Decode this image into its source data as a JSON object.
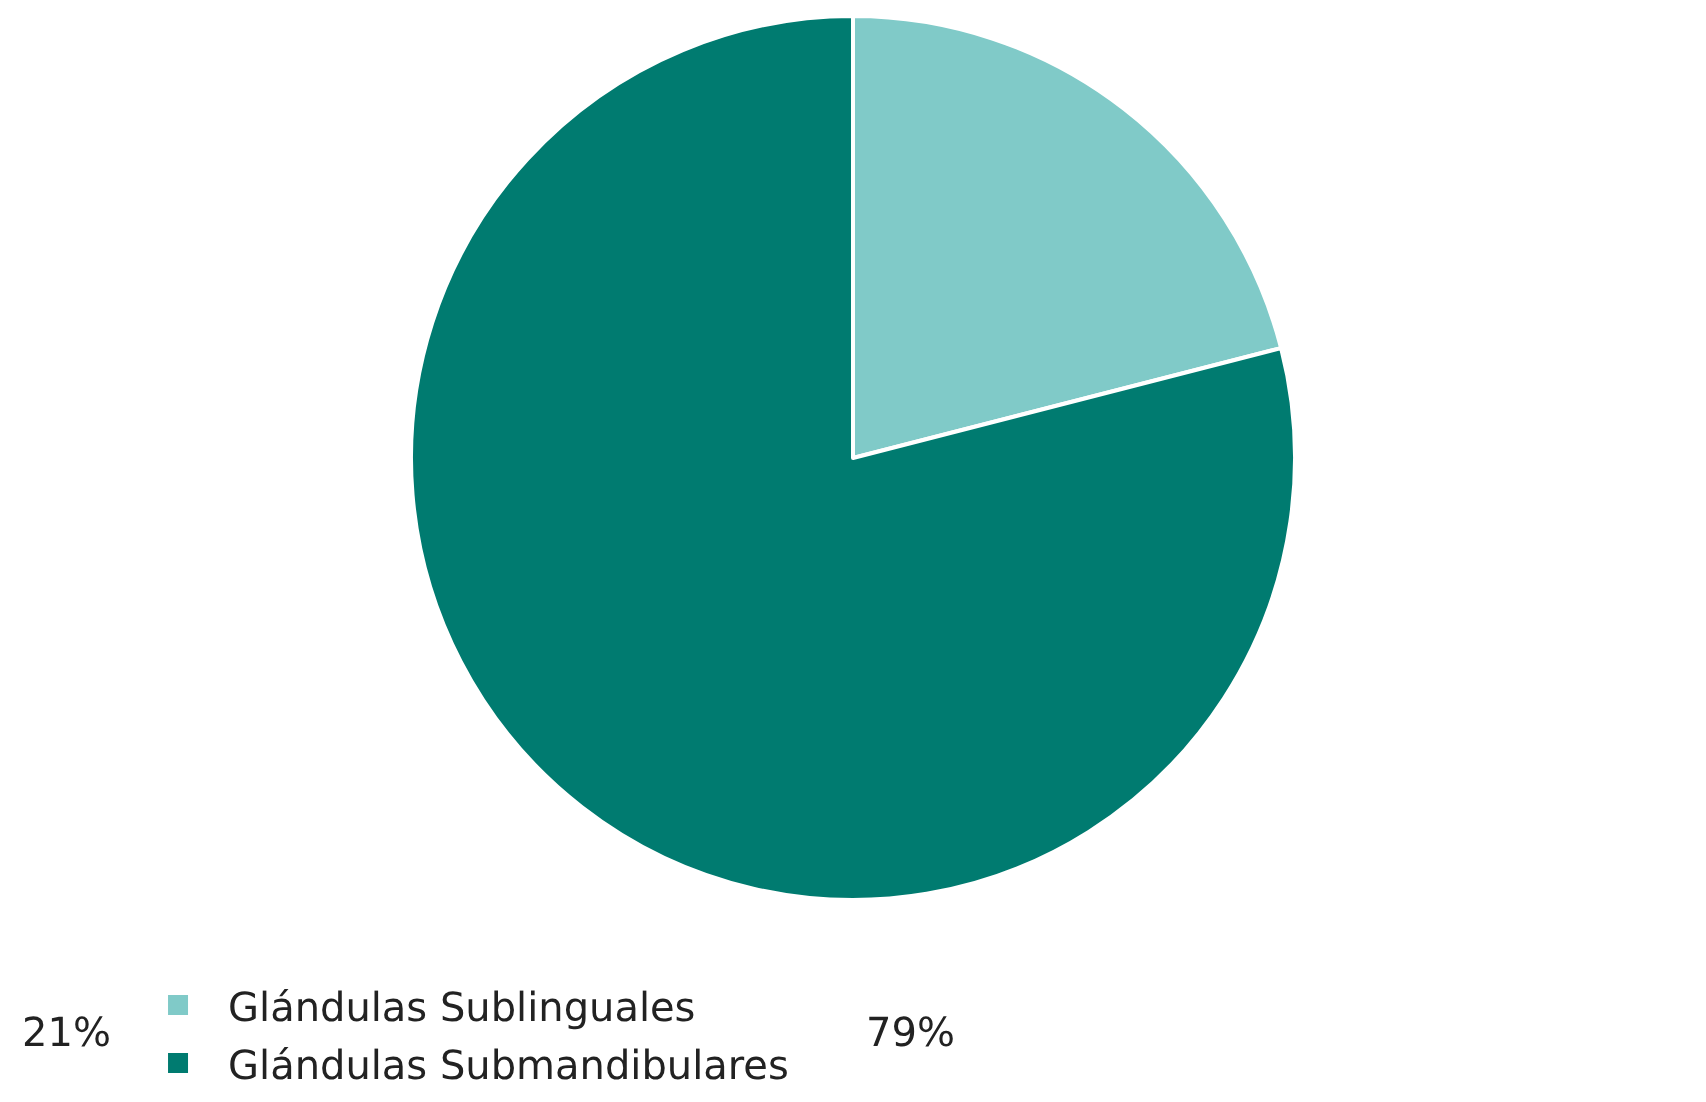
{
  "chart_data": {
    "type": "pie",
    "categories": [
      "Glándulas Sublinguales",
      "Glándulas Submandibulares"
    ],
    "values": [
      21,
      79
    ],
    "colors": [
      "#80cac8",
      "#007b70"
    ],
    "value_labels": [
      "21%",
      "79%"
    ],
    "legend": "bottom"
  }
}
